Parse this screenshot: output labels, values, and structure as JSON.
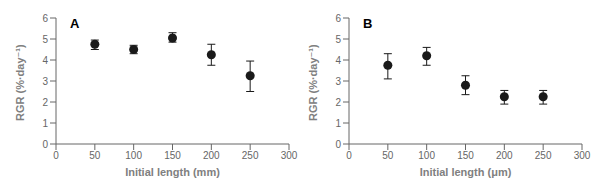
{
  "chart_data": [
    {
      "type": "scatter",
      "title": "A",
      "xlabel": "Initial length (mm)",
      "ylabel": "RGR (%·day⁻¹)",
      "x": [
        50,
        100,
        150,
        200,
        250
      ],
      "values": [
        4.75,
        4.5,
        5.05,
        4.25,
        3.25
      ],
      "yerr_lower": [
        0.25,
        0.2,
        0.2,
        0.5,
        0.75
      ],
      "yerr_upper": [
        0.2,
        0.2,
        0.25,
        0.5,
        0.7
      ],
      "color": "#1a1a1a",
      "xlim": [
        0,
        300
      ],
      "xticks": [
        0,
        50,
        100,
        150,
        200,
        250,
        300
      ],
      "ylim": [
        0,
        6
      ],
      "yticks": [
        0,
        1,
        2,
        3,
        4,
        5,
        6
      ]
    },
    {
      "type": "scatter",
      "title": "B",
      "xlabel": "Initial length (μm)",
      "ylabel": "RGR (%·day⁻¹)",
      "x": [
        50,
        100,
        150,
        200,
        250
      ],
      "values": [
        3.75,
        4.2,
        2.8,
        2.25,
        2.25
      ],
      "yerr_lower": [
        0.65,
        0.45,
        0.45,
        0.35,
        0.35
      ],
      "yerr_upper": [
        0.55,
        0.4,
        0.45,
        0.3,
        0.3
      ],
      "color": "#1a1a1a",
      "xlim": [
        0,
        300
      ],
      "xticks": [
        0,
        50,
        100,
        150,
        200,
        250,
        300
      ],
      "ylim": [
        0,
        6
      ],
      "yticks": [
        0,
        1,
        2,
        3,
        4,
        5,
        6
      ]
    }
  ]
}
